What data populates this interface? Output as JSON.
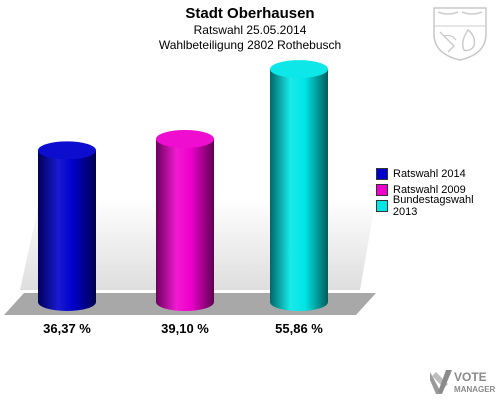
{
  "chart_data": {
    "type": "bar",
    "title": "Stadt Oberhausen",
    "subtitle_lines": [
      "Ratswahl 25.05.2014",
      "Wahlbeteiligung 2802 Rothebusch"
    ],
    "categories": [
      "Ratswahl 2014",
      "Ratswahl 2009",
      "Bundestagswahl 2013"
    ],
    "values": [
      36.37,
      39.1,
      55.86
    ],
    "value_labels": [
      "36,37 %",
      "39,10 %",
      "55,86 %"
    ],
    "unit": "%",
    "ylim": [
      0,
      60
    ],
    "grid": false,
    "legend_position": "right",
    "colors": [
      "#0000cc",
      "#ee00cc",
      "#00e6e6"
    ]
  },
  "logo": {
    "line1": "VOTE",
    "line2": "MANAGER"
  },
  "icons": {
    "crest": "coat-of-arms-icon",
    "logo": "votemanager-logo-icon"
  }
}
